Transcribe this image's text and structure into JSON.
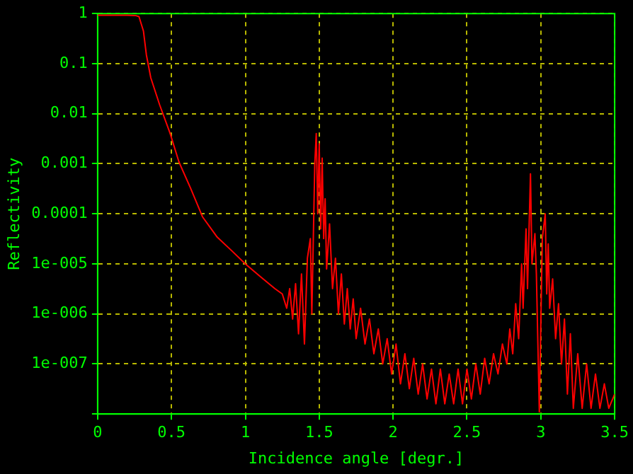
{
  "chart_data": {
    "type": "line",
    "xlabel": "Incidence angle [degr.]",
    "ylabel": "Reflectivity",
    "log": "y",
    "grid": true,
    "legend": false,
    "xlim": [
      0,
      3.5
    ],
    "xticks": [
      0,
      0.5,
      1,
      1.5,
      2,
      2.5,
      3,
      3.5
    ],
    "ylim": [
      1e-08,
      1
    ],
    "yticks": [
      1,
      0.1,
      0.01,
      0.001,
      0.0001,
      {
        "value": 1e-05,
        "label": "1e-005"
      },
      {
        "value": 1e-06,
        "label": "1e-006"
      },
      {
        "value": 1e-07,
        "label": "1e-007"
      },
      {
        "value": 1e-08,
        "label": null
      }
    ],
    "series": [
      {
        "color": "#ff0000",
        "x": [
          0,
          0.1,
          0.2,
          0.26,
          0.28,
          0.31,
          0.33,
          0.36,
          0.42,
          0.49,
          0.55,
          0.63,
          0.71,
          0.81,
          0.91,
          1.0,
          1.1,
          1.2,
          1.25,
          1.28,
          1.3,
          1.32,
          1.34,
          1.36,
          1.38,
          1.4,
          1.42,
          1.44,
          1.45,
          1.47,
          1.48,
          1.49,
          1.5,
          1.51,
          1.52,
          1.53,
          1.54,
          1.55,
          1.57,
          1.59,
          1.61,
          1.63,
          1.65,
          1.67,
          1.69,
          1.71,
          1.73,
          1.75,
          1.78,
          1.81,
          1.84,
          1.87,
          1.9,
          1.93,
          1.96,
          1.99,
          2.02,
          2.05,
          2.08,
          2.11,
          2.14,
          2.17,
          2.2,
          2.23,
          2.26,
          2.29,
          2.32,
          2.35,
          2.38,
          2.41,
          2.44,
          2.47,
          2.5,
          2.53,
          2.56,
          2.59,
          2.62,
          2.65,
          2.68,
          2.71,
          2.74,
          2.77,
          2.79,
          2.81,
          2.83,
          2.85,
          2.87,
          2.88,
          2.9,
          2.91,
          2.93,
          2.94,
          2.96,
          2.97,
          2.99,
          3.01,
          3.03,
          3.04,
          3.05,
          3.06,
          3.08,
          3.1,
          3.12,
          3.14,
          3.16,
          3.18,
          3.2,
          3.22,
          3.25,
          3.28,
          3.31,
          3.34,
          3.37,
          3.4,
          3.43,
          3.46,
          3.5
        ],
        "values": [
          0.93,
          0.93,
          0.93,
          0.91,
          0.87,
          0.45,
          0.15,
          0.052,
          0.015,
          0.0041,
          0.0011,
          0.00032,
          8.7e-05,
          3.4e-05,
          1.8e-05,
          1e-05,
          5.6e-06,
          3.2e-06,
          2.5e-06,
          1.3e-06,
          3.2e-06,
          7.9e-07,
          4e-06,
          4e-07,
          6.3e-06,
          2.5e-07,
          1.3e-05,
          3.2e-05,
          1e-06,
          0.001,
          0.004,
          0.0001,
          0.0025,
          5e-05,
          0.0013,
          3.2e-05,
          0.0002,
          7.9e-06,
          6.3e-05,
          3.2e-06,
          1.3e-05,
          1e-06,
          6.3e-06,
          6.3e-07,
          3.2e-06,
          5e-07,
          2e-06,
          3.2e-07,
          1.3e-06,
          2.5e-07,
          7.9e-07,
          1.6e-07,
          5e-07,
          1e-07,
          3.2e-07,
          6.3e-08,
          2.5e-07,
          4e-08,
          1.6e-07,
          3.2e-08,
          1.3e-07,
          2.5e-08,
          1e-07,
          2e-08,
          7.9e-08,
          1.6e-08,
          7.9e-08,
          1.6e-08,
          6.3e-08,
          1.6e-08,
          7.9e-08,
          1.6e-08,
          7.9e-08,
          2e-08,
          1e-07,
          2.5e-08,
          1.3e-07,
          4e-08,
          1.6e-07,
          6.3e-08,
          2.5e-07,
          1e-07,
          5e-07,
          1.6e-07,
          1.6e-06,
          3.2e-07,
          1e-05,
          1.3e-06,
          5e-05,
          3.2e-06,
          0.00063,
          1e-05,
          4e-05,
          6.3e-06,
          1.1e-08,
          3.2e-05,
          0.0001,
          2.5e-06,
          2.5e-05,
          1.3e-06,
          5e-06,
          3.2e-07,
          1.6e-06,
          1e-07,
          7.9e-07,
          2.5e-08,
          4e-07,
          1.3e-08,
          1.6e-07,
          1.3e-08,
          1e-07,
          1.3e-08,
          6.3e-08,
          1.3e-08,
          4e-08,
          1.3e-08,
          2.5e-08
        ]
      }
    ]
  }
}
